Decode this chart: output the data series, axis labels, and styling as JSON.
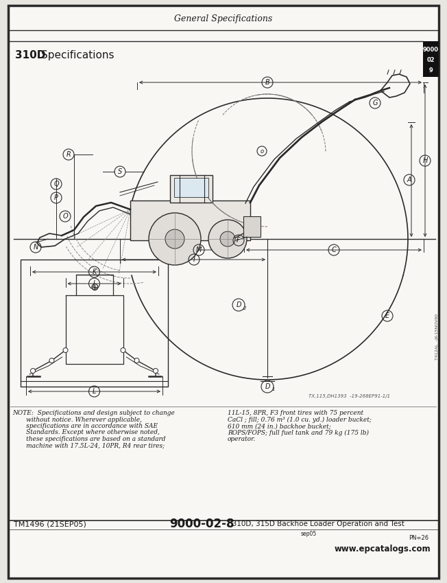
{
  "page_title": "General Specifications",
  "section_title": "310D  Specifications",
  "section_code_lines": [
    "9000",
    "02",
    "9"
  ],
  "footer_left": "TM1496 (21SEP05)",
  "footer_page": "9000-02-8",
  "footer_right": "310D, 315D Backhoe Loader Operation and Test",
  "footer_sub1": "sep05",
  "footer_sub2": "PN=26",
  "footer_web": "www.epcatalogs.com",
  "note_left_lines": [
    "NOTE:  Specifications and design subject to change",
    "       without notice. Wherever applicable,",
    "       specifications are in accordance with SAE",
    "       Standards. Except where otherwise noted,",
    "       these specifications are based on a standard",
    "       machine with 17.5L-24, 10PR, R4 rear tires;"
  ],
  "note_right_lines": [
    "11L-15, 8PR, F3 front tires with 75 percent",
    "CaCl ; fill; 0.76 m³ (1.0 cu. yd.) loader bucket;",
    "610 mm (24 in.) backhoe bucket;",
    "ROPS/FOPS; full fuel tank and 79 kg (175 lb)",
    "operator."
  ],
  "diagram_ref": "TX,115,DH1393  -19-268EP91-1/1",
  "side_ref": "T412AL  -JK-15NOV90",
  "bg_color": "#e8e6e0",
  "page_bg": "#f5f4f0",
  "content_bg": "#f8f7f4",
  "border_color": "#2a2a2a",
  "dim_color": "#2a2a2a",
  "text_color": "#1a1a1a",
  "light_gray": "#d0cec8"
}
